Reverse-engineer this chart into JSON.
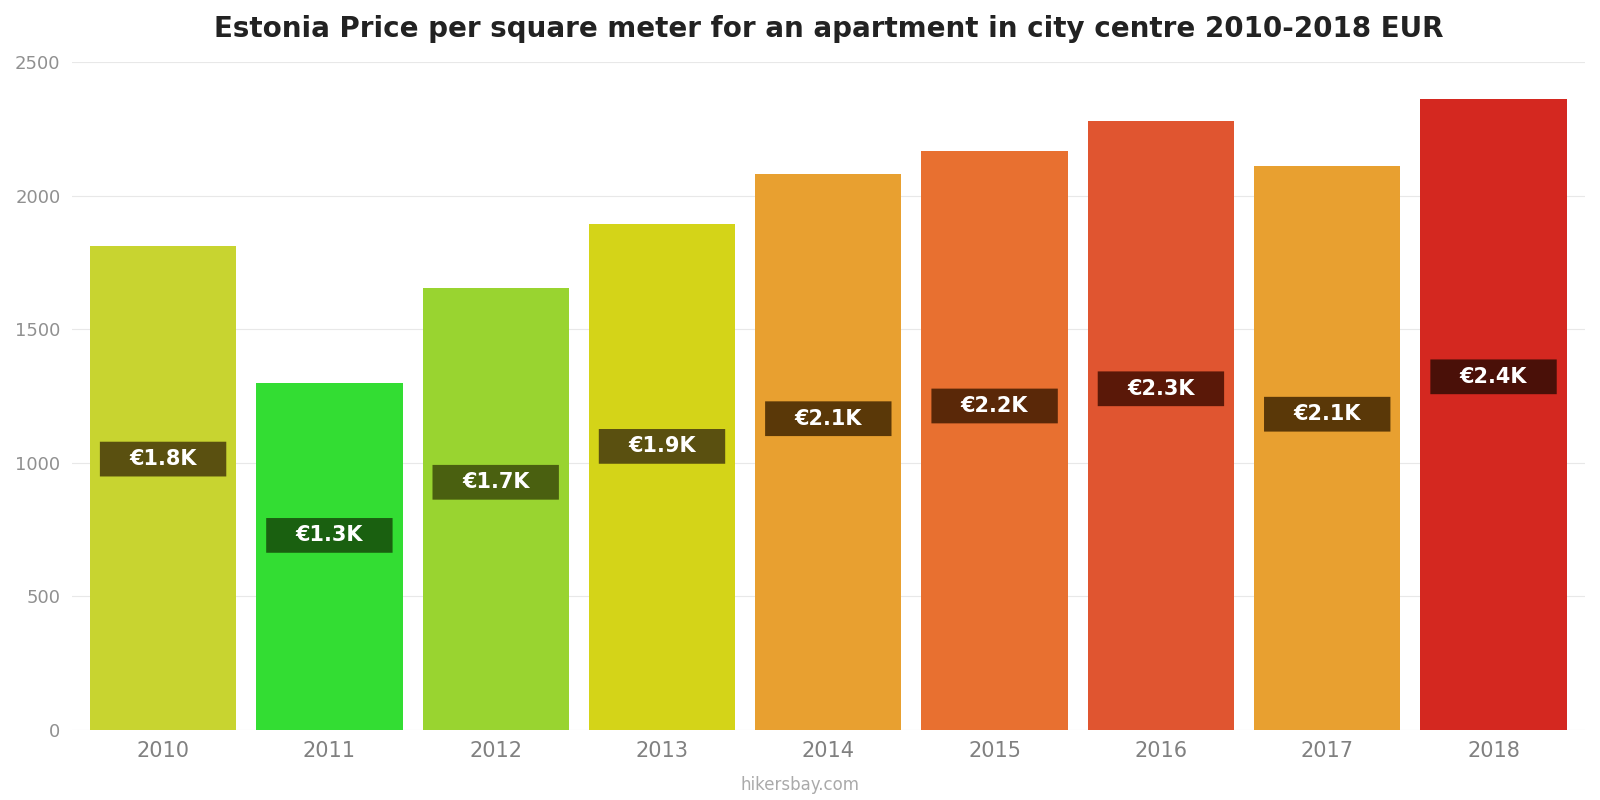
{
  "title": "Estonia Price per square meter for an apartment in city centre 2010-2018 EUR",
  "years": [
    2010,
    2011,
    2012,
    2013,
    2014,
    2015,
    2016,
    2017,
    2018
  ],
  "values": [
    1810,
    1300,
    1655,
    1895,
    2080,
    2165,
    2280,
    2110,
    2360
  ],
  "labels": [
    "€1.8K",
    "€1.3K",
    "€1.7K",
    "€1.9K",
    "€2.1K",
    "€2.2K",
    "€2.3K",
    "€2.1K",
    "€2.4K"
  ],
  "bar_colors": [
    "#c8d430",
    "#33dd33",
    "#99d430",
    "#d4d418",
    "#e8a030",
    "#e87030",
    "#e05530",
    "#e8a030",
    "#d42820"
  ],
  "label_box_colors": [
    "#5a5010",
    "#1a6010",
    "#4a6010",
    "#5a5010",
    "#5a3808",
    "#5a2808",
    "#5a1808",
    "#5a3808",
    "#4a1008"
  ],
  "ylim": [
    0,
    2500
  ],
  "yticks": [
    0,
    500,
    1000,
    1500,
    2000,
    2500
  ],
  "background_color": "#ffffff",
  "title_fontsize": 20,
  "label_text_color": "#ffffff",
  "footer_text": "hikersbay.com",
  "grid_color": "#e8e8e8",
  "bar_width": 0.88
}
